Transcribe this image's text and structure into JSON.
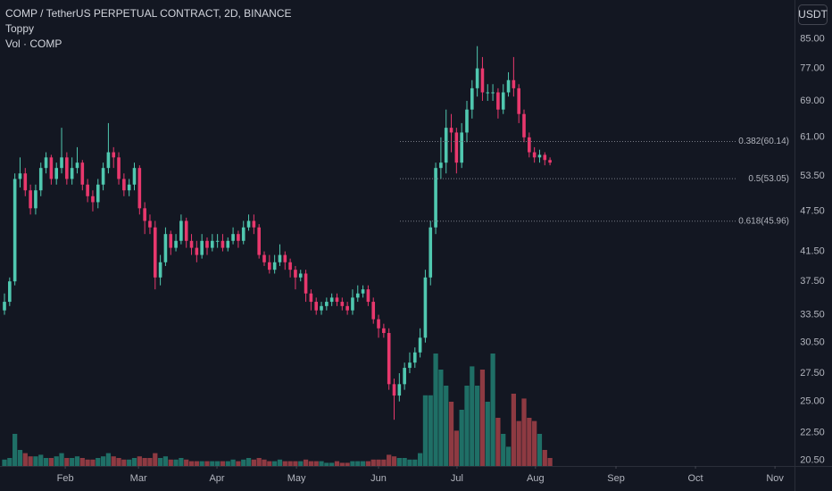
{
  "chart_data": {
    "type": "candlestick",
    "title": "COMP / TetherUS PERPETUAL CONTRACT, 2D, BINANCE",
    "indicators": [
      "Toppy",
      "Vol · COMP"
    ],
    "currency": "USDT",
    "log_scale": true,
    "grid": false,
    "up_color": "#50c8b0",
    "down_color": "#e8386d",
    "volume_up_color": "#1f6f66",
    "volume_down_color": "#8e3a42",
    "ylim": [
      20.1,
      97
    ],
    "yticks": [
      {
        "value": 85,
        "label": "85.00"
      },
      {
        "value": 77,
        "label": "77.00"
      },
      {
        "value": 69,
        "label": "69.00"
      },
      {
        "value": 61,
        "label": "61.00"
      },
      {
        "value": 53.5,
        "label": "53.50"
      },
      {
        "value": 47.5,
        "label": "47.50"
      },
      {
        "value": 41.5,
        "label": "41.50"
      },
      {
        "value": 37.5,
        "label": "37.50"
      },
      {
        "value": 33.5,
        "label": "33.50"
      },
      {
        "value": 30.5,
        "label": "30.50"
      },
      {
        "value": 27.5,
        "label": "27.50"
      },
      {
        "value": 25,
        "label": "25.00"
      },
      {
        "value": 22.5,
        "label": "22.50"
      },
      {
        "value": 20.5,
        "label": "20.50"
      }
    ],
    "xlim": [
      -0.86,
      152.06
    ],
    "xticks": [
      {
        "value": 11.7,
        "label": "Feb"
      },
      {
        "value": 25.8,
        "label": "Mar"
      },
      {
        "value": 40.9,
        "label": "Apr"
      },
      {
        "value": 56.2,
        "label": "May"
      },
      {
        "value": 72,
        "label": "Jun"
      },
      {
        "value": 87.1,
        "label": "Jul"
      },
      {
        "value": 102.2,
        "label": "Aug"
      },
      {
        "value": 117.7,
        "label": "Sep"
      },
      {
        "value": 133,
        "label": "Oct"
      },
      {
        "value": 148.3,
        "label": "Nov"
      }
    ],
    "fib_levels": [
      {
        "label": "0.382(60.14)",
        "value": 60.14
      },
      {
        "label": "0.5(53.05)",
        "value": 53.05
      },
      {
        "label": "0.618(45.96)",
        "value": 45.96
      }
    ],
    "candles": {
      "open": [
        34,
        35,
        37.5,
        53,
        54,
        51,
        48,
        51,
        55,
        57,
        53,
        55,
        57,
        53,
        55,
        56,
        52,
        50,
        49,
        52,
        55,
        58,
        57,
        53,
        51,
        52,
        55,
        48,
        46,
        45,
        38,
        40,
        44,
        42,
        43,
        46,
        43,
        42,
        41,
        43,
        42,
        43,
        43,
        42,
        43,
        44,
        43,
        45,
        46,
        45,
        41,
        40,
        39,
        40,
        41,
        40,
        39,
        38,
        38.5,
        36,
        35,
        34,
        34.5,
        35,
        35.5,
        35,
        34.5,
        34,
        35.5,
        36,
        36.5,
        35,
        33,
        32,
        31.5,
        26.5,
        25.5,
        26.5,
        28,
        28.5,
        29.5,
        31,
        38,
        45,
        55,
        56,
        63,
        62,
        56,
        62,
        67,
        72,
        77,
        71,
        71,
        71,
        67,
        71,
        74,
        72,
        66,
        61,
        58,
        57,
        57.5,
        56.5
      ],
      "high": [
        36,
        38,
        54,
        57,
        55,
        52,
        52,
        56,
        58,
        57.5,
        56,
        63,
        58,
        57,
        59,
        56.5,
        53,
        51,
        53,
        56,
        64,
        59,
        58,
        54,
        53,
        56,
        55.5,
        49,
        47,
        46,
        41,
        45,
        44.5,
        44,
        47,
        46.5,
        44,
        43,
        44,
        43.5,
        44,
        44,
        44,
        43.5,
        45,
        44.5,
        46,
        47,
        47,
        45.5,
        41.5,
        41,
        41,
        42.5,
        41.5,
        40.5,
        39.5,
        39,
        39,
        36.5,
        35.5,
        35,
        35.5,
        36,
        36,
        35.5,
        35,
        36.5,
        37,
        37,
        37,
        35.5,
        33.5,
        32.5,
        32,
        27,
        27.5,
        28.5,
        29.5,
        30,
        32,
        39,
        46,
        56,
        61,
        67,
        66,
        63,
        64,
        69,
        74,
        83,
        80,
        73,
        73,
        72,
        73,
        76,
        80,
        73,
        67,
        62,
        59,
        58.5,
        58,
        57
      ],
      "low": [
        33.5,
        34.5,
        37,
        51.5,
        50,
        47,
        47,
        50,
        54,
        52,
        52,
        54,
        52,
        52,
        54,
        51,
        49,
        47.5,
        48,
        51,
        54,
        55,
        52,
        50,
        50,
        51,
        47,
        44,
        44,
        36.5,
        37,
        39.5,
        41,
        41.5,
        42.5,
        42,
        41,
        40,
        40.5,
        41,
        41.5,
        42,
        41.5,
        41.5,
        42.5,
        42,
        42.5,
        44.5,
        44,
        40.5,
        39.5,
        38.5,
        38.5,
        39.5,
        39,
        38,
        36.5,
        37.5,
        35,
        34,
        33.5,
        33.5,
        34,
        34.5,
        34.5,
        34,
        33.5,
        33.5,
        35,
        35.5,
        34.5,
        32.5,
        31,
        31,
        26,
        23.5,
        25,
        26,
        27.5,
        28,
        29,
        30.5,
        37,
        44,
        53,
        54,
        58,
        54,
        55,
        60,
        65,
        70,
        69,
        69,
        69,
        65,
        66,
        70,
        70,
        64,
        60,
        57,
        56,
        56,
        55.5,
        55.5
      ],
      "close": [
        35,
        37.5,
        53,
        54,
        51,
        48,
        51,
        55,
        57,
        53,
        55,
        57,
        53,
        55,
        56,
        52,
        50,
        49,
        52,
        55,
        58,
        57,
        53,
        51,
        52,
        55,
        48,
        46,
        45,
        38,
        40,
        44,
        42,
        43,
        46,
        43,
        42,
        41,
        43,
        42,
        43,
        43,
        42,
        43,
        44,
        43,
        45,
        46,
        45,
        41,
        40,
        39,
        40,
        41,
        40,
        39,
        38,
        38.5,
        36,
        35,
        34,
        34.5,
        35,
        35.5,
        35,
        34.5,
        34,
        35.5,
        36,
        36.5,
        35,
        33,
        32,
        31.5,
        26.5,
        25.5,
        26.5,
        28,
        28.5,
        29.5,
        31,
        38,
        45,
        55,
        56,
        63,
        62,
        56,
        62,
        67,
        72,
        77,
        71,
        71,
        71,
        67,
        71,
        74,
        72,
        66,
        61,
        58,
        57,
        57.5,
        56.5,
        56
      ]
    },
    "volume": [
      4,
      5,
      20,
      10,
      8,
      6,
      6,
      7,
      5,
      5,
      6,
      8,
      5,
      5,
      6,
      5,
      4,
      4,
      5,
      6,
      8,
      6,
      5,
      4,
      4,
      5,
      6,
      5,
      5,
      8,
      5,
      6,
      4,
      4,
      5,
      4,
      3,
      3,
      3,
      3,
      3,
      3,
      3,
      3,
      4,
      3,
      4,
      5,
      4,
      5,
      4,
      3,
      3,
      4,
      3,
      3,
      3,
      3,
      4,
      3,
      3,
      3,
      2,
      2,
      3,
      2,
      2,
      3,
      3,
      3,
      3,
      4,
      4,
      4,
      7,
      6,
      5,
      5,
      4,
      4,
      8,
      44,
      44,
      70,
      60,
      50,
      40,
      22,
      35,
      50,
      62,
      50,
      60,
      40,
      70,
      30,
      20,
      12,
      45,
      28,
      42,
      30,
      28,
      20,
      10,
      5
    ],
    "vlim": [
      0,
      100
    ]
  }
}
